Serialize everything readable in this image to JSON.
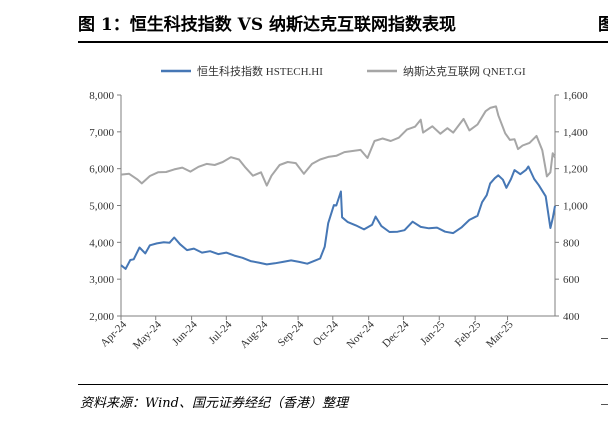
{
  "header": {
    "title": "图 1：恒生科技指数 VS 纳斯达克互联网指数表现",
    "clipped_next_title": "图"
  },
  "footer": {
    "source": "资料来源：Wind、国元证券经纪（香港）整理"
  },
  "chart_data": {
    "type": "line",
    "title": "",
    "xlabel": "",
    "ylabel_left": "",
    "ylabel_right": "",
    "legend_position": "top",
    "x_domain": [
      "2024-04-01",
      "2025-04-11"
    ],
    "x_tick_labels": [
      "Apr-24",
      "May-24",
      "Jun-24",
      "Jul-24",
      "Aug-24",
      "Sep-24",
      "Oct-24",
      "Nov-24",
      "Dec-24",
      "Jan-25",
      "Feb-25",
      "Mar-25"
    ],
    "x_tick_dates": [
      "2024-04-01",
      "2024-05-01",
      "2024-06-01",
      "2024-07-01",
      "2024-08-01",
      "2024-09-01",
      "2024-10-01",
      "2024-11-01",
      "2024-12-01",
      "2025-01-01",
      "2025-02-01",
      "2025-03-01"
    ],
    "y_left": {
      "range": [
        2000,
        8000
      ],
      "ticks": [
        2000,
        3000,
        4000,
        5000,
        6000,
        7000,
        8000
      ],
      "tick_labels": [
        "2,000",
        "3,000",
        "4,000",
        "5,000",
        "6,000",
        "7,000",
        "8,000"
      ]
    },
    "y_right": {
      "range": [
        400,
        1600
      ],
      "ticks": [
        400,
        600,
        800,
        1000,
        1200,
        1400,
        1600
      ],
      "tick_labels": [
        "400",
        "600",
        "800",
        "1,000",
        "1,200",
        "1,400",
        "1,600"
      ]
    },
    "series": [
      {
        "name": "恒生科技指数 HSTECH.HI",
        "axis": "left",
        "color": "#4677b5",
        "points": [
          [
            "2024-04-01",
            3380
          ],
          [
            "2024-04-05",
            3280
          ],
          [
            "2024-04-09",
            3520
          ],
          [
            "2024-04-12",
            3540
          ],
          [
            "2024-04-17",
            3860
          ],
          [
            "2024-04-22",
            3700
          ],
          [
            "2024-04-26",
            3920
          ],
          [
            "2024-05-02",
            3970
          ],
          [
            "2024-05-08",
            4000
          ],
          [
            "2024-05-13",
            3990
          ],
          [
            "2024-05-17",
            4130
          ],
          [
            "2024-05-22",
            3950
          ],
          [
            "2024-05-28",
            3790
          ],
          [
            "2024-06-03",
            3830
          ],
          [
            "2024-06-10",
            3720
          ],
          [
            "2024-06-17",
            3760
          ],
          [
            "2024-06-24",
            3680
          ],
          [
            "2024-07-01",
            3720
          ],
          [
            "2024-07-08",
            3640
          ],
          [
            "2024-07-15",
            3580
          ],
          [
            "2024-07-22",
            3490
          ],
          [
            "2024-07-29",
            3450
          ],
          [
            "2024-08-05",
            3400
          ],
          [
            "2024-08-12",
            3430
          ],
          [
            "2024-08-19",
            3470
          ],
          [
            "2024-08-26",
            3510
          ],
          [
            "2024-09-02",
            3470
          ],
          [
            "2024-09-09",
            3420
          ],
          [
            "2024-09-16",
            3510
          ],
          [
            "2024-09-20",
            3560
          ],
          [
            "2024-09-24",
            3880
          ],
          [
            "2024-09-27",
            4520
          ],
          [
            "2024-10-02",
            5010
          ],
          [
            "2024-10-04",
            5000
          ],
          [
            "2024-10-08",
            5380
          ],
          [
            "2024-10-09",
            4680
          ],
          [
            "2024-10-14",
            4550
          ],
          [
            "2024-10-21",
            4460
          ],
          [
            "2024-10-28",
            4350
          ],
          [
            "2024-11-04",
            4480
          ],
          [
            "2024-11-07",
            4700
          ],
          [
            "2024-11-12",
            4440
          ],
          [
            "2024-11-19",
            4280
          ],
          [
            "2024-11-26",
            4290
          ],
          [
            "2024-12-02",
            4330
          ],
          [
            "2024-12-09",
            4560
          ],
          [
            "2024-12-16",
            4420
          ],
          [
            "2024-12-23",
            4380
          ],
          [
            "2024-12-30",
            4400
          ],
          [
            "2025-01-06",
            4290
          ],
          [
            "2025-01-13",
            4250
          ],
          [
            "2025-01-20",
            4400
          ],
          [
            "2025-01-27",
            4610
          ],
          [
            "2025-02-03",
            4720
          ],
          [
            "2025-02-07",
            5090
          ],
          [
            "2025-02-11",
            5280
          ],
          [
            "2025-02-14",
            5600
          ],
          [
            "2025-02-18",
            5740
          ],
          [
            "2025-02-21",
            5820
          ],
          [
            "2025-02-25",
            5700
          ],
          [
            "2025-02-28",
            5480
          ],
          [
            "2025-03-04",
            5720
          ],
          [
            "2025-03-07",
            5960
          ],
          [
            "2025-03-12",
            5850
          ],
          [
            "2025-03-17",
            5970
          ],
          [
            "2025-03-19",
            6060
          ],
          [
            "2025-03-24",
            5720
          ],
          [
            "2025-03-28",
            5550
          ],
          [
            "2025-04-03",
            5250
          ],
          [
            "2025-04-07",
            4390
          ],
          [
            "2025-04-09",
            4650
          ],
          [
            "2025-04-11",
            4990
          ]
        ]
      },
      {
        "name": "纳斯达克互联网 QNET.GI",
        "axis": "right",
        "color": "#a6a6a6",
        "points": [
          [
            "2024-04-01",
            1168
          ],
          [
            "2024-04-08",
            1172
          ],
          [
            "2024-04-15",
            1142
          ],
          [
            "2024-04-19",
            1120
          ],
          [
            "2024-04-26",
            1160
          ],
          [
            "2024-05-03",
            1180
          ],
          [
            "2024-05-10",
            1182
          ],
          [
            "2024-05-17",
            1196
          ],
          [
            "2024-05-24",
            1206
          ],
          [
            "2024-05-31",
            1184
          ],
          [
            "2024-06-07",
            1210
          ],
          [
            "2024-06-14",
            1226
          ],
          [
            "2024-06-21",
            1220
          ],
          [
            "2024-06-28",
            1236
          ],
          [
            "2024-07-05",
            1262
          ],
          [
            "2024-07-12",
            1250
          ],
          [
            "2024-07-17",
            1210
          ],
          [
            "2024-07-24",
            1162
          ],
          [
            "2024-07-31",
            1180
          ],
          [
            "2024-08-05",
            1108
          ],
          [
            "2024-08-09",
            1162
          ],
          [
            "2024-08-16",
            1220
          ],
          [
            "2024-08-23",
            1236
          ],
          [
            "2024-08-30",
            1230
          ],
          [
            "2024-09-06",
            1172
          ],
          [
            "2024-09-13",
            1226
          ],
          [
            "2024-09-20",
            1250
          ],
          [
            "2024-09-27",
            1264
          ],
          [
            "2024-10-04",
            1270
          ],
          [
            "2024-10-11",
            1290
          ],
          [
            "2024-10-18",
            1296
          ],
          [
            "2024-10-25",
            1302
          ],
          [
            "2024-10-31",
            1258
          ],
          [
            "2024-11-06",
            1350
          ],
          [
            "2024-11-13",
            1364
          ],
          [
            "2024-11-20",
            1350
          ],
          [
            "2024-11-27",
            1368
          ],
          [
            "2024-12-04",
            1412
          ],
          [
            "2024-12-11",
            1428
          ],
          [
            "2024-12-16",
            1466
          ],
          [
            "2024-12-18",
            1396
          ],
          [
            "2024-12-26",
            1430
          ],
          [
            "2025-01-02",
            1390
          ],
          [
            "2025-01-08",
            1420
          ],
          [
            "2025-01-13",
            1396
          ],
          [
            "2025-01-22",
            1470
          ],
          [
            "2025-01-27",
            1408
          ],
          [
            "2025-02-03",
            1440
          ],
          [
            "2025-02-10",
            1512
          ],
          [
            "2025-02-14",
            1530
          ],
          [
            "2025-02-19",
            1538
          ],
          [
            "2025-02-21",
            1490
          ],
          [
            "2025-02-27",
            1392
          ],
          [
            "2025-03-03",
            1356
          ],
          [
            "2025-03-07",
            1360
          ],
          [
            "2025-03-10",
            1306
          ],
          [
            "2025-03-14",
            1326
          ],
          [
            "2025-03-20",
            1340
          ],
          [
            "2025-03-26",
            1378
          ],
          [
            "2025-03-31",
            1300
          ],
          [
            "2025-04-03",
            1196
          ],
          [
            "2025-04-04",
            1158
          ],
          [
            "2025-04-07",
            1180
          ],
          [
            "2025-04-09",
            1284
          ],
          [
            "2025-04-11",
            1260
          ]
        ]
      }
    ]
  }
}
